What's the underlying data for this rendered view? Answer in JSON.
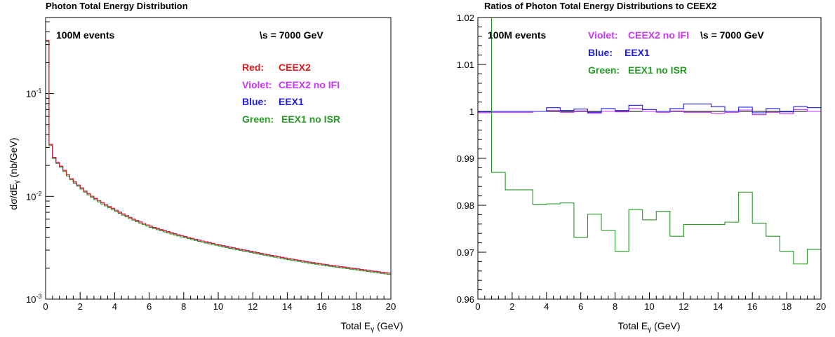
{
  "colors": {
    "red": "#e31a1c",
    "violet": "#cc33ff",
    "blue": "#1f1fe6",
    "green": "#239b23",
    "black": "#000000"
  },
  "chart_data": [
    {
      "type": "line",
      "title": "Photon Total Energy Distribution",
      "xlabel": "Total E",
      "xlabel_sub": "γ",
      "xlabel_unit": " (GeV)",
      "ylabel": "dσ/dE",
      "ylabel_sub": "γ",
      "ylabel_unit": " (nb/GeV)",
      "xlim": [
        0,
        20
      ],
      "ylim": [
        0.001,
        0.55
      ],
      "yscale": "log",
      "xticks": [
        0,
        2,
        4,
        6,
        8,
        10,
        12,
        14,
        16,
        18,
        20
      ],
      "yticks": [
        {
          "value": 0.001,
          "base": "10",
          "exp": "-3"
        },
        {
          "value": 0.01,
          "base": "10",
          "exp": "-2"
        },
        {
          "value": 0.1,
          "base": "10",
          "exp": "-1"
        }
      ],
      "notes": [
        "100M events",
        "\\s = 7000 GeV"
      ],
      "legend": [
        {
          "label": "Red:",
          "name": "CEEX2",
          "color": "#e31a1c"
        },
        {
          "label": "Violet:",
          "name": "CEEX2 no IFI",
          "color": "#cc33ff"
        },
        {
          "label": "Blue:",
          "name": "EEX1",
          "color": "#1f1fe6"
        },
        {
          "label": "Green:",
          "name": "EEX1 no ISR",
          "color": "#239b23"
        }
      ],
      "bin_width": 0.2,
      "series": [
        {
          "color": "#e31a1c",
          "scale": 1.0
        },
        {
          "color": "#cc33ff",
          "scale": 1.0
        },
        {
          "color": "#1f1fe6",
          "scale": 1.0
        },
        {
          "color": "#239b23",
          "scale": 0.975
        }
      ],
      "reference_points": [
        [
          0.1,
          0.33
        ],
        [
          0.3,
          0.032
        ],
        [
          0.5,
          0.024
        ],
        [
          1.0,
          0.019
        ],
        [
          2.0,
          0.0125
        ],
        [
          3.0,
          0.0093
        ],
        [
          4.0,
          0.0075
        ],
        [
          6.0,
          0.0052
        ],
        [
          8.0,
          0.0041
        ],
        [
          10.0,
          0.0034
        ],
        [
          12.0,
          0.0029
        ],
        [
          14.0,
          0.0025
        ],
        [
          16.0,
          0.0022
        ],
        [
          18.0,
          0.00198
        ],
        [
          20.0,
          0.00178
        ]
      ]
    },
    {
      "type": "line",
      "title": "Ratios of Photon Total Energy Distributions to CEEX2",
      "xlabel": "Total E",
      "xlabel_sub": "γ",
      "xlabel_unit": " (GeV)",
      "xlim": [
        0,
        20
      ],
      "ylim": [
        0.96,
        1.02
      ],
      "xticks": [
        0,
        2,
        4,
        6,
        8,
        10,
        12,
        14,
        16,
        18,
        20
      ],
      "yticks": [
        0.96,
        0.97,
        0.98,
        0.99,
        1,
        1.01,
        1.02
      ],
      "notes": [
        "100M events",
        "\\s = 7000 GeV"
      ],
      "legend": [
        {
          "label": "Violet:",
          "name": "CEEX2 no IFI",
          "color": "#cc33ff"
        },
        {
          "label": "Blue:",
          "name": "EEX1",
          "color": "#1f1fe6"
        },
        {
          "label": "Green:",
          "name": "EEX1 no ISR",
          "color": "#239b23"
        }
      ],
      "bin_edges": [
        0,
        0.8,
        1.6,
        3.2,
        4.0,
        4.8,
        5.6,
        6.4,
        7.2,
        8.0,
        8.8,
        9.6,
        10.4,
        11.2,
        12.0,
        13.6,
        14.4,
        15.2,
        16.0,
        16.8,
        17.6,
        18.4,
        19.2,
        20.0
      ],
      "series": [
        {
          "name": "CEEX2 no IFI",
          "color": "#cc33ff",
          "values": [
            0.9997,
            0.9998,
            0.9998,
            1.0,
            1.0002,
            0.9998,
            1.0001,
            0.9996,
            1.0,
            0.9999,
            1.0006,
            1.0,
            0.9998,
            1.0001,
            0.9998,
            0.9996,
            0.9998,
            1.0003,
            0.9993,
            0.9998,
            0.9995,
            1.0004,
            1.0
          ]
        },
        {
          "name": "EEX1",
          "color": "#1f1fe6",
          "values": [
            0.9999,
            1.0,
            1.0,
            1.0,
            1.0008,
            1.0002,
            1.0005,
            0.9998,
            1.0006,
            1.0002,
            1.0013,
            1.0004,
            1.0,
            1.0006,
            1.0016,
            1.001,
            1.0,
            1.0009,
            0.9997,
            1.0006,
            0.9999,
            1.001,
            1.0008
          ]
        },
        {
          "name": "EEX1 no ISR",
          "color": "#239b23",
          "values": [
            1.025,
            0.987,
            0.9833,
            0.9802,
            0.9803,
            0.9805,
            0.9732,
            0.9781,
            0.9747,
            0.9702,
            0.9791,
            0.9769,
            0.9787,
            0.9734,
            0.9759,
            0.9759,
            0.9764,
            0.9828,
            0.9762,
            0.9734,
            0.9702,
            0.9675,
            0.9706
          ]
        }
      ]
    }
  ]
}
